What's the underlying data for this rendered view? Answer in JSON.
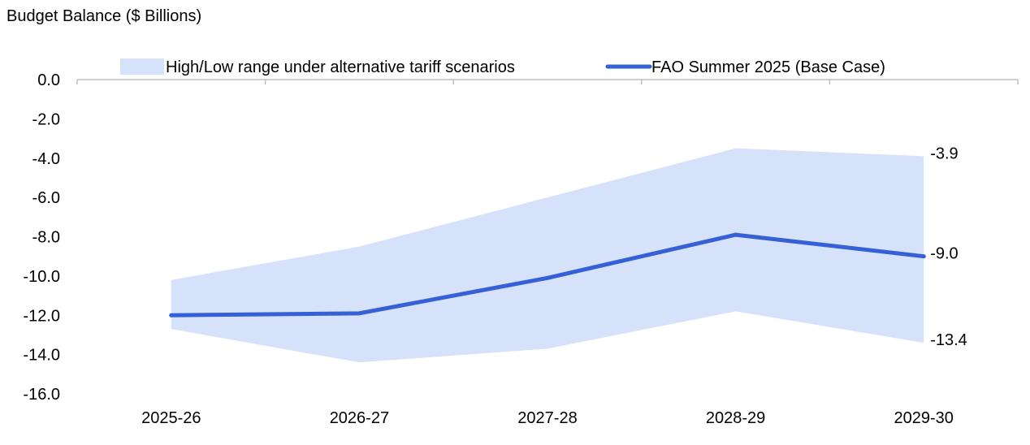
{
  "chart_data": {
    "type": "area",
    "title": "Budget Balance ($ Billions)",
    "categories": [
      "2025-26",
      "2026-27",
      "2027-28",
      "2028-29",
      "2029-30"
    ],
    "ylim": [
      -16,
      0
    ],
    "yticks": [
      "0.0",
      "-2.0",
      "-4.0",
      "-6.0",
      "-8.0",
      "-10.0",
      "-12.0",
      "-14.0",
      "-16.0"
    ],
    "grid": false,
    "legend_position": "top",
    "series": [
      {
        "name": "High/Low range under alternative tariff scenarios",
        "kind": "range",
        "color": "#d6e2fa",
        "high": [
          -10.2,
          -8.5,
          -6.0,
          -3.5,
          -3.9
        ],
        "low": [
          -12.7,
          -14.4,
          -13.7,
          -11.8,
          -13.4
        ]
      },
      {
        "name": "FAO Summer 2025 (Base Case)",
        "kind": "line",
        "color": "#3560d6",
        "values": [
          -12.0,
          -11.9,
          -10.1,
          -7.9,
          -9.0
        ]
      }
    ],
    "annotations": [
      "-3.9",
      "-9.0",
      "-13.4"
    ]
  }
}
